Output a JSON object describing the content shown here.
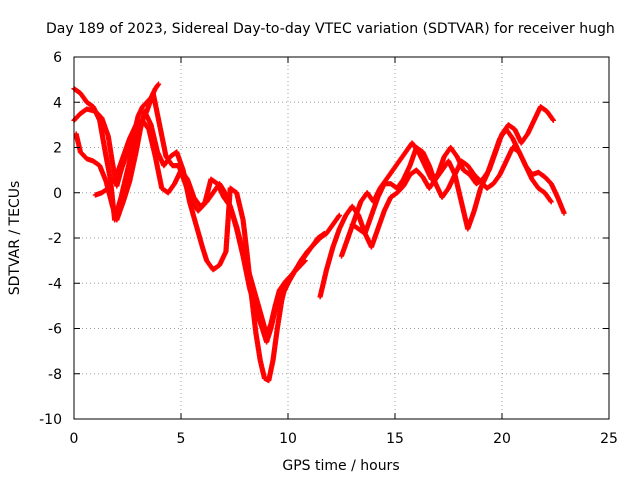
{
  "chart_data": {
    "type": "scatter",
    "title": "Day 189 of 2023, Sidereal Day-to-day VTEC variation (SDTVAR) for receiver hugh",
    "xlabel": "GPS time / hours",
    "ylabel": "SDTVAR / TECUs",
    "xlim": [
      0,
      25
    ],
    "ylim": [
      -10,
      6
    ],
    "xticks": [
      0,
      5,
      10,
      15,
      20,
      25
    ],
    "yticks": [
      -10,
      -8,
      -6,
      -4,
      -2,
      0,
      2,
      4,
      6
    ],
    "grid": true,
    "legend": "none",
    "marker": "plus",
    "color": "#ff0000",
    "series": [
      {
        "x": [
          0.0,
          0.3,
          0.6,
          1.0,
          1.3,
          1.6,
          1.8,
          2.0,
          2.2,
          2.5,
          2.8,
          3.0,
          3.2,
          3.4,
          3.6,
          3.8,
          3.95
        ],
        "y": [
          3.2,
          3.5,
          3.7,
          3.6,
          3.3,
          2.5,
          1.3,
          0.3,
          1.0,
          1.8,
          2.6,
          3.4,
          3.8,
          4.0,
          4.2,
          4.6,
          4.8
        ]
      },
      {
        "x": [
          0.1,
          0.3,
          0.6,
          0.9,
          1.2,
          1.5,
          1.8,
          2.0,
          2.3,
          2.6,
          2.9,
          3.1,
          3.3,
          3.6,
          3.9,
          4.2,
          4.5,
          4.8,
          5.1,
          5.4,
          5.7,
          6.0,
          6.2,
          6.5,
          6.8,
          7.1,
          7.3,
          7.6,
          7.9,
          8.1,
          8.3,
          8.5,
          8.7,
          8.9,
          9.1,
          9.3,
          9.5,
          9.7,
          9.9,
          10.2,
          10.5,
          10.8
        ],
        "y": [
          2.6,
          1.8,
          1.5,
          1.4,
          1.2,
          0.5,
          -0.6,
          -1.2,
          -0.4,
          0.5,
          1.8,
          2.8,
          3.6,
          3.0,
          1.8,
          1.2,
          1.6,
          1.8,
          1.0,
          -0.4,
          -1.4,
          -2.4,
          -3.0,
          -3.4,
          -3.2,
          -2.6,
          0.2,
          0.0,
          -1.2,
          -2.8,
          -4.6,
          -6.2,
          -7.4,
          -8.2,
          -8.3,
          -7.4,
          -6.0,
          -4.8,
          -4.0,
          -3.6,
          -3.3,
          -3.0
        ]
      },
      {
        "x": [
          0.0,
          0.3,
          0.6,
          0.9,
          1.2,
          1.5,
          1.7,
          1.9,
          2.2,
          2.5,
          2.8,
          3.1,
          3.4,
          3.7,
          4.0,
          4.3,
          4.6,
          4.9,
          5.2,
          5.5,
          5.8,
          6.1,
          6.4,
          6.7,
          7.0,
          7.3,
          7.6,
          7.9,
          8.2,
          8.5,
          8.8,
          9.0,
          9.2,
          9.4,
          9.6,
          9.9,
          10.2,
          10.5,
          10.8,
          11.1,
          11.4,
          11.7
        ],
        "y": [
          4.6,
          4.4,
          4.0,
          3.8,
          3.2,
          1.6,
          0.6,
          -1.2,
          -0.2,
          1.0,
          2.2,
          3.0,
          3.6,
          4.4,
          3.0,
          1.6,
          1.2,
          1.2,
          0.4,
          -0.4,
          -0.8,
          -0.5,
          0.6,
          0.4,
          -0.2,
          -0.6,
          -1.5,
          -2.6,
          -3.6,
          -4.6,
          -5.6,
          -6.3,
          -5.8,
          -5.0,
          -4.3,
          -3.9,
          -3.6,
          -3.2,
          -2.8,
          -2.4,
          -2.0,
          -1.8
        ]
      },
      {
        "x": [
          1.0,
          1.3,
          1.6,
          2.0,
          2.3,
          2.6,
          2.9,
          3.2,
          3.5,
          3.8,
          4.1,
          4.4,
          4.7,
          5.0,
          5.3,
          5.6,
          5.9,
          6.2,
          6.5,
          6.8,
          7.0,
          7.3,
          7.6,
          7.9,
          8.2,
          8.5,
          8.8,
          9.0,
          9.2,
          9.4,
          9.7,
          10.0,
          10.3,
          10.6,
          10.9,
          11.2,
          11.5,
          11.8,
          12.1,
          12.4
        ],
        "y": [
          -0.1,
          0.0,
          0.2,
          0.8,
          1.6,
          2.4,
          3.0,
          3.2,
          2.8,
          1.6,
          0.2,
          0.0,
          0.4,
          1.0,
          0.6,
          -0.2,
          -0.6,
          -0.4,
          0.0,
          0.4,
          0.1,
          -0.6,
          -1.6,
          -2.8,
          -4.2,
          -5.2,
          -6.0,
          -6.6,
          -6.0,
          -5.2,
          -4.6,
          -4.0,
          -3.5,
          -3.0,
          -2.6,
          -2.3,
          -2.0,
          -1.8,
          -1.4,
          -1.0
        ]
      },
      {
        "x": [
          11.5,
          11.8,
          12.1,
          12.4,
          12.7,
          13.0,
          13.3,
          13.6,
          13.9,
          14.2,
          14.5,
          14.8,
          15.1,
          15.4,
          15.7,
          16.0,
          16.3,
          16.6,
          16.9,
          17.2,
          17.5,
          17.8,
          18.1,
          18.4,
          18.7,
          19.0,
          19.3,
          19.6,
          19.9,
          20.2,
          20.5,
          20.8,
          21.1,
          21.4,
          21.7,
          22.0,
          22.3,
          22.6,
          22.9
        ],
        "y": [
          -4.6,
          -3.4,
          -2.4,
          -1.6,
          -1.0,
          -0.6,
          -1.0,
          -1.8,
          -2.4,
          -1.6,
          -0.8,
          -0.2,
          0.0,
          0.3,
          0.8,
          1.0,
          0.7,
          0.2,
          0.6,
          1.0,
          1.4,
          0.8,
          -0.4,
          -1.6,
          -0.8,
          0.2,
          0.8,
          1.6,
          2.4,
          2.8,
          2.4,
          1.8,
          1.2,
          0.8,
          0.9,
          0.7,
          0.4,
          -0.2,
          -0.9
        ]
      },
      {
        "x": [
          12.5,
          12.8,
          13.1,
          13.4,
          13.7,
          14.0,
          14.3,
          14.6,
          14.9,
          15.2,
          15.5,
          15.8,
          16.1,
          16.4,
          16.7,
          17.0,
          17.3,
          17.6,
          17.9,
          18.2,
          18.5,
          18.8,
          19.1,
          19.4,
          19.7,
          20.0,
          20.3,
          20.6,
          20.9,
          21.2,
          21.5,
          21.8,
          22.1,
          22.4
        ],
        "y": [
          -2.8,
          -2.0,
          -1.2,
          -0.4,
          0.0,
          -0.4,
          0.2,
          0.6,
          1.0,
          1.4,
          1.8,
          2.2,
          1.8,
          1.2,
          0.6,
          0.8,
          1.6,
          2.0,
          1.6,
          1.0,
          0.8,
          0.4,
          0.6,
          1.0,
          1.8,
          2.6,
          3.0,
          2.8,
          2.2,
          2.6,
          3.2,
          3.8,
          3.6,
          3.2
        ]
      },
      {
        "x": [
          13.0,
          13.3,
          13.6,
          13.9,
          14.2,
          14.5,
          14.8,
          15.1,
          15.4,
          15.7,
          16.0,
          16.3,
          16.6,
          16.9,
          17.2,
          17.5,
          17.8,
          18.1,
          18.4,
          18.7,
          19.0,
          19.3,
          19.6,
          19.9,
          20.2,
          20.5,
          20.8,
          21.1,
          21.4,
          21.7,
          22.0,
          22.3
        ],
        "y": [
          -1.4,
          -1.6,
          -1.8,
          -1.0,
          -0.2,
          0.4,
          0.4,
          0.2,
          0.6,
          1.2,
          2.0,
          1.8,
          1.2,
          0.4,
          -0.2,
          0.2,
          0.8,
          1.4,
          1.2,
          0.8,
          0.5,
          0.2,
          0.4,
          0.8,
          1.4,
          2.0,
          1.8,
          1.2,
          0.6,
          0.2,
          0.0,
          -0.4
        ]
      }
    ]
  }
}
